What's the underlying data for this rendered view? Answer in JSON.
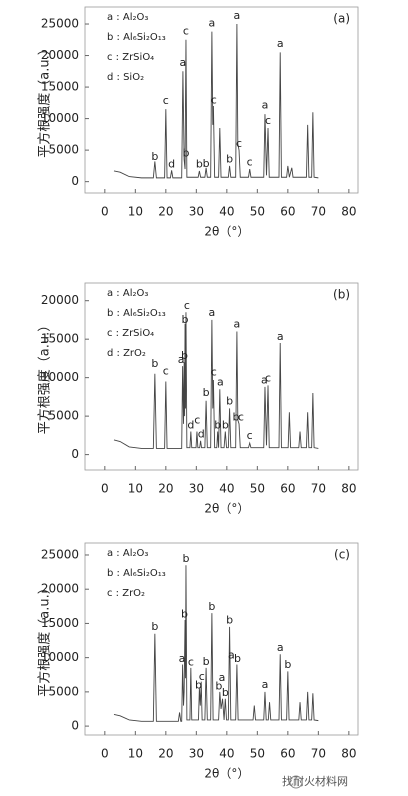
{
  "chart_data": [
    {
      "type": "line",
      "panel_label": "(a)",
      "xlabel": "2θ（°）",
      "ylabel": "平方根强度（a.u.）",
      "legend": [
        "a : Al₂O₃",
        "b : Al₆Si₂O₁₃",
        "c : ZrSiO₄",
        "d : SiO₂"
      ],
      "xlim": [
        -6.5,
        83
      ],
      "ylim": [
        -1800,
        27700
      ],
      "xticks": [
        0,
        10,
        20,
        30,
        40,
        50,
        60,
        70,
        80
      ],
      "yticks": [
        0,
        5000,
        10000,
        15000,
        20000,
        25000
      ],
      "color": "#444444",
      "x": [
        3,
        5,
        8,
        12,
        15.9,
        16.4,
        16.9,
        19.6,
        20.0,
        20.4,
        21.5,
        21.9,
        22.3,
        25.2,
        25.6,
        26.0,
        26.3,
        26.6,
        26.9,
        30.6,
        31.0,
        31.4,
        32.8,
        33.2,
        33.6,
        34.7,
        35.1,
        35.4,
        35.6,
        36.0,
        37.3,
        37.7,
        38.1,
        40.5,
        40.9,
        41.3,
        42.9,
        43.3,
        43.6,
        44.0,
        44.4,
        47.1,
        47.5,
        47.9,
        52.1,
        52.5,
        53.0,
        53.5,
        53.9,
        57.1,
        57.5,
        57.9,
        59.6,
        60,
        60.5,
        61.3,
        61.7,
        66.1,
        66.5,
        66.9,
        67.8,
        68.2,
        68.6,
        70
      ],
      "values": [
        1700,
        1500,
        800,
        600,
        600,
        3200,
        600,
        600,
        11500,
        600,
        600,
        1800,
        600,
        600,
        17500,
        3500,
        2000,
        22500,
        700,
        700,
        1700,
        700,
        700,
        2200,
        700,
        700,
        23800,
        9000,
        12000,
        700,
        700,
        8500,
        700,
        700,
        2500,
        700,
        700,
        25000,
        6000,
        5000,
        700,
        700,
        2000,
        700,
        700,
        10700,
        1000,
        8500,
        700,
        700,
        20500,
        700,
        700,
        2500,
        700,
        2200,
        700,
        700,
        9000,
        700,
        700,
        11000,
        700,
        600
      ],
      "annotations": [
        {
          "text": "b",
          "x": 16.4,
          "y": 3900
        },
        {
          "text": "c",
          "x": 20,
          "y": 12800
        },
        {
          "text": "d",
          "x": 21.9,
          "y": 2700
        },
        {
          "text": "a",
          "x": 25.6,
          "y": 18800
        },
        {
          "text": "b",
          "x": 26.6,
          "y": 4500
        },
        {
          "text": "c",
          "x": 26.6,
          "y": 23800
        },
        {
          "text": "b",
          "x": 31,
          "y": 2700
        },
        {
          "text": "b",
          "x": 33.2,
          "y": 2800
        },
        {
          "text": "a",
          "x": 35.1,
          "y": 25100
        },
        {
          "text": "c",
          "x": 35.7,
          "y": 12900
        },
        {
          "text": "b",
          "x": 40.9,
          "y": 3500
        },
        {
          "text": "a",
          "x": 43.3,
          "y": 26300
        },
        {
          "text": "c",
          "x": 44,
          "y": 6000
        },
        {
          "text": "c",
          "x": 47.5,
          "y": 3000
        },
        {
          "text": "a",
          "x": 52.5,
          "y": 12100
        },
        {
          "text": "c",
          "x": 53.5,
          "y": 9600
        },
        {
          "text": "a",
          "x": 57.5,
          "y": 21800
        }
      ]
    },
    {
      "type": "line",
      "panel_label": "(b)",
      "xlabel": "2θ（°）",
      "ylabel": "平方根强度（a.u.）",
      "legend": [
        "a : Al₂O₃",
        "b : Al₆Si₂O₁₃",
        "c : ZrSiO₄",
        "d : ZrO₂"
      ],
      "xlim": [
        -6.5,
        83
      ],
      "ylim": [
        -2000,
        22300
      ],
      "xticks": [
        0,
        10,
        20,
        30,
        40,
        50,
        60,
        70,
        80
      ],
      "yticks": [
        0,
        5000,
        10000,
        15000,
        20000
      ],
      "color": "#444444",
      "x": [
        3,
        5,
        8,
        12,
        15.9,
        16.4,
        16.9,
        19.6,
        20.0,
        20.4,
        25.2,
        25.5,
        25.8,
        26.0,
        26.15,
        26.3,
        26.45,
        26.6,
        26.9,
        27.9,
        28.2,
        28.5,
        29.9,
        30.2,
        30.5,
        31.1,
        31.4,
        31.7,
        32.8,
        33.2,
        33.6,
        34.7,
        35.1,
        35.4,
        35.6,
        36.0,
        36.7,
        37.0,
        37.3,
        37.7,
        38.1,
        39.1,
        39.5,
        39.9,
        40.5,
        40.9,
        41.3,
        42.9,
        43.3,
        43.6,
        44.0,
        44.4,
        47.1,
        47.5,
        47.9,
        52.1,
        52.5,
        53.0,
        53.5,
        53.9,
        57.1,
        57.5,
        57.9,
        60.1,
        60.5,
        60.9,
        63.6,
        64,
        64.4,
        66.1,
        66.5,
        66.9,
        67.8,
        68.2,
        68.6,
        70
      ],
      "values": [
        1900,
        1700,
        1000,
        800,
        800,
        10500,
        800,
        800,
        9500,
        800,
        800,
        11500,
        4000,
        12000,
        5000,
        17000,
        6000,
        18500,
        900,
        900,
        3000,
        900,
        900,
        3000,
        900,
        900,
        1800,
        900,
        900,
        7000,
        900,
        900,
        17500,
        6000,
        9700,
        900,
        900,
        3000,
        900,
        8500,
        900,
        900,
        3000,
        900,
        900,
        6000,
        900,
        900,
        16000,
        4500,
        4000,
        900,
        900,
        1500,
        900,
        900,
        8800,
        1200,
        9000,
        900,
        900,
        14500,
        900,
        900,
        5500,
        900,
        900,
        3000,
        900,
        900,
        5500,
        900,
        900,
        8000,
        900,
        800
      ],
      "annotations": [
        {
          "text": "b",
          "x": 16.4,
          "y": 11800
        },
        {
          "text": "c",
          "x": 20,
          "y": 10800
        },
        {
          "text": "a",
          "x": 25,
          "y": 12300
        },
        {
          "text": "b",
          "x": 26.1,
          "y": 12800
        },
        {
          "text": "b",
          "x": 26.3,
          "y": 17500
        },
        {
          "text": "c",
          "x": 26.9,
          "y": 19300
        },
        {
          "text": "d",
          "x": 28.2,
          "y": 3800
        },
        {
          "text": "c",
          "x": 30.3,
          "y": 4400
        },
        {
          "text": "d",
          "x": 31.6,
          "y": 2600
        },
        {
          "text": "b",
          "x": 33.2,
          "y": 8000
        },
        {
          "text": "a",
          "x": 35.1,
          "y": 18400
        },
        {
          "text": "c",
          "x": 35.7,
          "y": 10700
        },
        {
          "text": "b",
          "x": 37,
          "y": 3800
        },
        {
          "text": "a",
          "x": 37.9,
          "y": 9400
        },
        {
          "text": "b",
          "x": 39.5,
          "y": 3800
        },
        {
          "text": "b",
          "x": 40.9,
          "y": 6900
        },
        {
          "text": "a",
          "x": 43.3,
          "y": 16900
        },
        {
          "text": "b",
          "x": 43,
          "y": 4800
        },
        {
          "text": "c",
          "x": 44.6,
          "y": 4800
        },
        {
          "text": "c",
          "x": 47.5,
          "y": 2400
        },
        {
          "text": "a",
          "x": 52.3,
          "y": 9600
        },
        {
          "text": "c",
          "x": 53.5,
          "y": 9900
        },
        {
          "text": "a",
          "x": 57.5,
          "y": 15300
        }
      ]
    },
    {
      "type": "line",
      "panel_label": "(c)",
      "xlabel": "2θ（°）",
      "ylabel": "平方根强度（a.u.）",
      "legend": [
        "a : Al₂O₃",
        "b : Al₆Si₂O₁₃",
        "c : ZrO₂"
      ],
      "xlim": [
        -6.5,
        83
      ],
      "ylim": [
        -1300,
        26750
      ],
      "xticks": [
        0,
        10,
        20,
        30,
        40,
        50,
        60,
        70,
        80
      ],
      "yticks": [
        0,
        5000,
        10000,
        15000,
        20000,
        25000
      ],
      "color": "#444444",
      "x": [
        3,
        5,
        8,
        12,
        15.9,
        16.4,
        16.9,
        24.1,
        24.5,
        24.9,
        25.2,
        25.5,
        25.8,
        26.0,
        26.3,
        26.45,
        26.6,
        26.9,
        27.9,
        28.2,
        28.5,
        30.7,
        31.0,
        31.3,
        31.6,
        31.9,
        32.8,
        33.2,
        33.6,
        34.7,
        35.1,
        35.5,
        37.3,
        37.7,
        38.1,
        38.6,
        39.1,
        39.5,
        39.9,
        40.5,
        40.9,
        41.3,
        42.9,
        43.3,
        43.7,
        48.6,
        49,
        49.4,
        52.1,
        52.5,
        52.9,
        53.6,
        54,
        54.4,
        57.1,
        57.5,
        57.9,
        59.6,
        60,
        60.4,
        63.6,
        64,
        64.4,
        66.1,
        66.5,
        66.9,
        67.8,
        68.2,
        68.6,
        70
      ],
      "values": [
        1700,
        1500,
        900,
        700,
        700,
        13500,
        700,
        700,
        2000,
        700,
        700,
        9000,
        3000,
        5000,
        15500,
        7000,
        23500,
        900,
        900,
        8500,
        900,
        900,
        5500,
        3000,
        6500,
        900,
        900,
        8500,
        900,
        900,
        16500,
        900,
        900,
        5000,
        2500,
        4000,
        900,
        4000,
        900,
        900,
        14500,
        900,
        900,
        9000,
        900,
        900,
        3000,
        900,
        900,
        5000,
        900,
        900,
        3500,
        900,
        900,
        10500,
        900,
        900,
        8000,
        900,
        900,
        3500,
        900,
        900,
        5000,
        900,
        900,
        4800,
        900,
        800
      ],
      "annotations": [
        {
          "text": "b",
          "x": 16.4,
          "y": 14500
        },
        {
          "text": "a",
          "x": 25.3,
          "y": 9800
        },
        {
          "text": "b",
          "x": 26.1,
          "y": 16300
        },
        {
          "text": "b",
          "x": 26.6,
          "y": 24400
        },
        {
          "text": "c",
          "x": 28.2,
          "y": 9300
        },
        {
          "text": "b",
          "x": 30.7,
          "y": 5900
        },
        {
          "text": "c",
          "x": 31.8,
          "y": 7200
        },
        {
          "text": "b",
          "x": 33.2,
          "y": 9400
        },
        {
          "text": "b",
          "x": 35.1,
          "y": 17400
        },
        {
          "text": "b",
          "x": 37.4,
          "y": 5800
        },
        {
          "text": "a",
          "x": 38.4,
          "y": 7000
        },
        {
          "text": "b",
          "x": 39.5,
          "y": 4800
        },
        {
          "text": "b",
          "x": 40.9,
          "y": 15400
        },
        {
          "text": "a",
          "x": 41.5,
          "y": 10300
        },
        {
          "text": "b",
          "x": 43.5,
          "y": 9800
        },
        {
          "text": "a",
          "x": 52.5,
          "y": 6000
        },
        {
          "text": "a",
          "x": 57.5,
          "y": 11400
        },
        {
          "text": "b",
          "x": 60,
          "y": 8900
        }
      ]
    }
  ],
  "watermark": "找耐火材料网"
}
